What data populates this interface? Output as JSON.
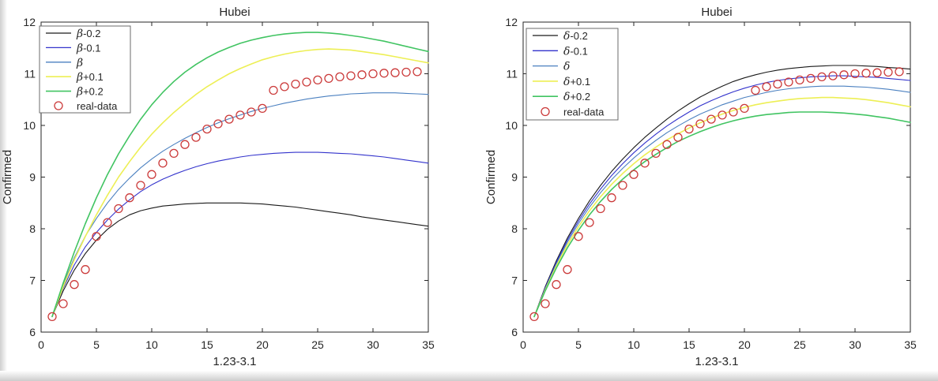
{
  "figure": {
    "background": "#ffffff",
    "axis_color": "#262626",
    "text_color": "#262626",
    "legend_border_color": "#6b6b6b"
  },
  "chart_data": [
    {
      "type": "line",
      "title": "Hubei",
      "xlabel": "1.23-3.1",
      "ylabel": "Confirmed",
      "xlim": [
        0,
        35
      ],
      "ylim": [
        6,
        12
      ],
      "xticks": [
        0,
        5,
        10,
        15,
        20,
        25,
        30,
        35
      ],
      "yticks": [
        6,
        7,
        8,
        9,
        10,
        11,
        12
      ],
      "grid": false,
      "legend_position": "top-left",
      "x": [
        1,
        2,
        3,
        4,
        5,
        6,
        7,
        8,
        9,
        10,
        11,
        12,
        13,
        14,
        15,
        16,
        17,
        18,
        19,
        20,
        21,
        22,
        23,
        24,
        25,
        26,
        27,
        28,
        29,
        30,
        31,
        32,
        33,
        34,
        35
      ],
      "series": [
        {
          "sym": "β",
          "suffix": "-0.2",
          "label": "β-0.2",
          "color": "#1a1a1a",
          "width": 1.1,
          "values": [
            6.3,
            6.8,
            7.2,
            7.52,
            7.78,
            7.99,
            8.15,
            8.27,
            8.35,
            8.4,
            8.44,
            8.46,
            8.48,
            8.49,
            8.5,
            8.5,
            8.5,
            8.5,
            8.49,
            8.48,
            8.46,
            8.44,
            8.42,
            8.39,
            8.36,
            8.33,
            8.3,
            8.27,
            8.23,
            8.2,
            8.17,
            8.14,
            8.11,
            8.08,
            8.05
          ]
        },
        {
          "sym": "β",
          "suffix": "-0.1",
          "label": "β-0.1",
          "color": "#3333cc",
          "width": 1.1,
          "values": [
            6.3,
            6.85,
            7.3,
            7.65,
            7.93,
            8.17,
            8.38,
            8.56,
            8.72,
            8.85,
            8.96,
            9.05,
            9.13,
            9.2,
            9.26,
            9.31,
            9.35,
            9.39,
            9.42,
            9.44,
            9.46,
            9.47,
            9.48,
            9.48,
            9.48,
            9.47,
            9.46,
            9.45,
            9.43,
            9.41,
            9.39,
            9.36,
            9.33,
            9.3,
            9.27
          ]
        },
        {
          "sym": "β",
          "suffix": "",
          "label": "β",
          "color": "#4b80c0",
          "width": 1.1,
          "values": [
            6.3,
            6.92,
            7.44,
            7.86,
            8.2,
            8.5,
            8.76,
            8.98,
            9.18,
            9.35,
            9.5,
            9.63,
            9.75,
            9.86,
            9.96,
            10.05,
            10.13,
            10.2,
            10.27,
            10.33,
            10.38,
            10.43,
            10.47,
            10.51,
            10.54,
            10.57,
            10.59,
            10.61,
            10.62,
            10.63,
            10.63,
            10.63,
            10.62,
            10.61,
            10.6
          ]
        },
        {
          "sym": "β",
          "suffix": "+0.1",
          "label": "β+0.1",
          "color": "#edef55",
          "width": 1.6,
          "values": [
            6.3,
            6.88,
            7.4,
            7.85,
            8.27,
            8.65,
            9.0,
            9.3,
            9.58,
            9.83,
            10.05,
            10.25,
            10.43,
            10.6,
            10.75,
            10.88,
            11.0,
            11.1,
            11.19,
            11.27,
            11.33,
            11.38,
            11.42,
            11.45,
            11.47,
            11.48,
            11.47,
            11.46,
            11.43,
            11.4,
            11.37,
            11.33,
            11.29,
            11.25,
            11.21
          ]
        },
        {
          "sym": "β",
          "suffix": "+0.2",
          "label": "β+0.2",
          "color": "#41c462",
          "width": 1.6,
          "values": [
            6.3,
            6.95,
            7.55,
            8.1,
            8.6,
            9.05,
            9.45,
            9.8,
            10.12,
            10.4,
            10.64,
            10.85,
            11.03,
            11.18,
            11.31,
            11.42,
            11.51,
            11.59,
            11.65,
            11.7,
            11.74,
            11.77,
            11.79,
            11.8,
            11.8,
            11.79,
            11.77,
            11.74,
            11.71,
            11.67,
            11.63,
            11.58,
            11.53,
            11.48,
            11.43
          ]
        }
      ],
      "scatter": {
        "label": "real-data",
        "color": "#cb3a3a",
        "marker": "circle",
        "x": [
          1,
          2,
          3,
          4,
          5,
          6,
          7,
          8,
          9,
          10,
          11,
          12,
          13,
          14,
          15,
          16,
          17,
          18,
          19,
          20,
          21,
          22,
          23,
          24,
          25,
          26,
          27,
          28,
          29,
          30,
          31,
          32,
          33,
          34
        ],
        "values": [
          6.3,
          6.55,
          6.92,
          7.21,
          7.85,
          8.12,
          8.39,
          8.6,
          8.84,
          9.05,
          9.27,
          9.46,
          9.63,
          9.77,
          9.93,
          10.03,
          10.12,
          10.2,
          10.26,
          10.33,
          10.68,
          10.75,
          10.8,
          10.84,
          10.88,
          10.91,
          10.94,
          10.96,
          10.98,
          11.0,
          11.01,
          11.02,
          11.03,
          11.04
        ]
      }
    },
    {
      "type": "line",
      "title": "Hubei",
      "xlabel": "1.23-3.1",
      "ylabel": "Confirmed",
      "xlim": [
        0,
        35
      ],
      "ylim": [
        6,
        12
      ],
      "xticks": [
        0,
        5,
        10,
        15,
        20,
        25,
        30,
        35
      ],
      "yticks": [
        6,
        7,
        8,
        9,
        10,
        11,
        12
      ],
      "grid": false,
      "legend_position": "top-left",
      "x": [
        1,
        2,
        3,
        4,
        5,
        6,
        7,
        8,
        9,
        10,
        11,
        12,
        13,
        14,
        15,
        16,
        17,
        18,
        19,
        20,
        21,
        22,
        23,
        24,
        25,
        26,
        27,
        28,
        29,
        30,
        31,
        32,
        33,
        34,
        35
      ],
      "series": [
        {
          "sym": "δ",
          "suffix": "-0.2",
          "label": "δ-0.2",
          "color": "#1a1a1a",
          "width": 1.1,
          "values": [
            6.3,
            6.88,
            7.38,
            7.82,
            8.2,
            8.54,
            8.84,
            9.11,
            9.35,
            9.57,
            9.77,
            9.95,
            10.12,
            10.28,
            10.42,
            10.55,
            10.66,
            10.76,
            10.85,
            10.92,
            10.98,
            11.03,
            11.07,
            11.1,
            11.12,
            11.14,
            11.15,
            11.16,
            11.16,
            11.16,
            11.15,
            11.14,
            11.12,
            11.11,
            11.09
          ]
        },
        {
          "sym": "δ",
          "suffix": "-0.1",
          "label": "δ-0.1",
          "color": "#3333cc",
          "width": 1.1,
          "values": [
            6.3,
            6.86,
            7.35,
            7.78,
            8.15,
            8.48,
            8.77,
            9.03,
            9.26,
            9.47,
            9.66,
            9.83,
            9.99,
            10.13,
            10.26,
            10.38,
            10.48,
            10.57,
            10.65,
            10.72,
            10.78,
            10.83,
            10.87,
            10.9,
            10.92,
            10.94,
            10.95,
            10.96,
            10.96,
            10.95,
            10.94,
            10.93,
            10.91,
            10.89,
            10.87
          ]
        },
        {
          "sym": "δ",
          "suffix": "",
          "label": "δ",
          "color": "#4b80c0",
          "width": 1.1,
          "values": [
            6.3,
            6.84,
            7.32,
            7.74,
            8.1,
            8.42,
            8.7,
            8.95,
            9.17,
            9.37,
            9.55,
            9.71,
            9.86,
            9.99,
            10.11,
            10.22,
            10.31,
            10.4,
            10.47,
            10.54,
            10.59,
            10.64,
            10.68,
            10.71,
            10.73,
            10.75,
            10.76,
            10.76,
            10.76,
            10.75,
            10.74,
            10.72,
            10.7,
            10.67,
            10.64
          ]
        },
        {
          "sym": "δ",
          "suffix": "+0.1",
          "label": "δ+0.1",
          "color": "#edef55",
          "width": 1.6,
          "values": [
            6.3,
            6.82,
            7.28,
            7.69,
            8.04,
            8.35,
            8.62,
            8.86,
            9.07,
            9.26,
            9.43,
            9.58,
            9.72,
            9.84,
            9.95,
            10.05,
            10.14,
            10.22,
            10.29,
            10.35,
            10.4,
            10.44,
            10.47,
            10.5,
            10.52,
            10.53,
            10.54,
            10.54,
            10.53,
            10.52,
            10.5,
            10.47,
            10.44,
            10.4,
            10.36
          ]
        },
        {
          "sym": "δ",
          "suffix": "+0.2",
          "label": "δ+0.2",
          "color": "#41c462",
          "width": 1.6,
          "values": [
            6.3,
            6.8,
            7.24,
            7.63,
            7.97,
            8.27,
            8.53,
            8.76,
            8.96,
            9.14,
            9.3,
            9.44,
            9.57,
            9.69,
            9.79,
            9.88,
            9.96,
            10.03,
            10.09,
            10.14,
            10.18,
            10.21,
            10.23,
            10.25,
            10.26,
            10.26,
            10.26,
            10.25,
            10.24,
            10.22,
            10.2,
            10.17,
            10.14,
            10.1,
            10.06
          ]
        }
      ],
      "scatter": {
        "label": "real-data",
        "color": "#cb3a3a",
        "marker": "circle",
        "x": [
          1,
          2,
          3,
          4,
          5,
          6,
          7,
          8,
          9,
          10,
          11,
          12,
          13,
          14,
          15,
          16,
          17,
          18,
          19,
          20,
          21,
          22,
          23,
          24,
          25,
          26,
          27,
          28,
          29,
          30,
          31,
          32,
          33,
          34
        ],
        "values": [
          6.3,
          6.55,
          6.92,
          7.21,
          7.85,
          8.12,
          8.39,
          8.6,
          8.84,
          9.05,
          9.27,
          9.46,
          9.63,
          9.77,
          9.93,
          10.03,
          10.12,
          10.2,
          10.26,
          10.33,
          10.68,
          10.75,
          10.8,
          10.84,
          10.88,
          10.91,
          10.94,
          10.96,
          10.98,
          11.0,
          11.01,
          11.02,
          11.03,
          11.04
        ]
      }
    }
  ]
}
